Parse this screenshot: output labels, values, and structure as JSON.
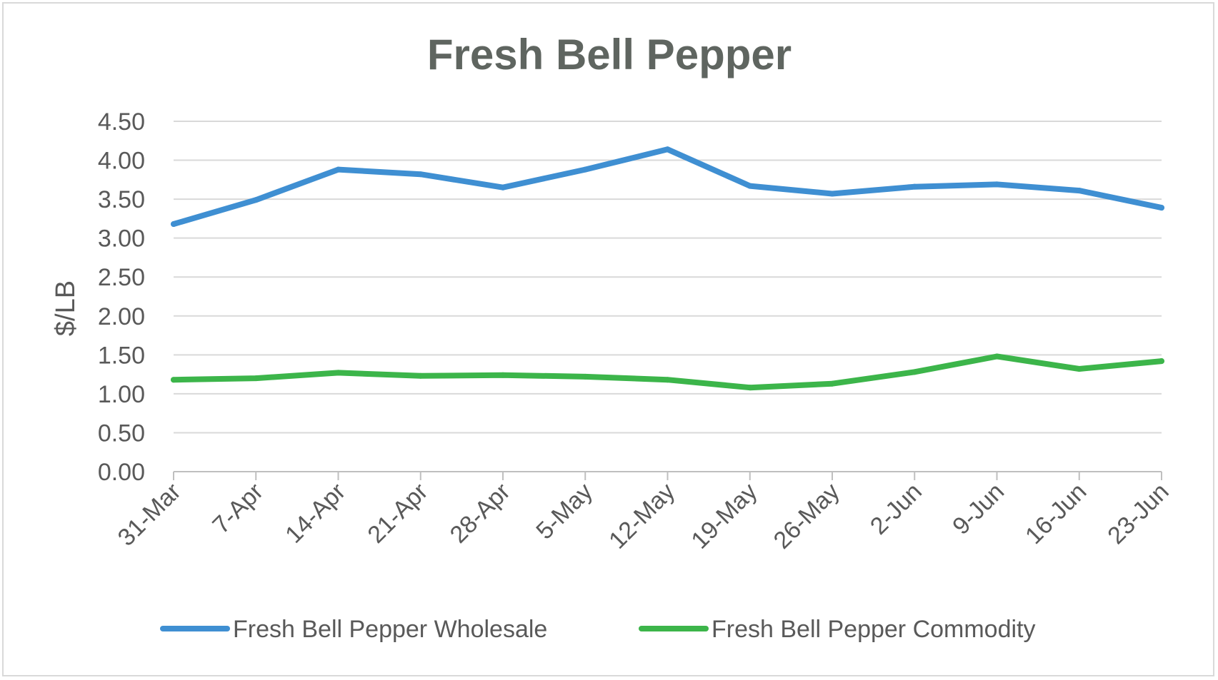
{
  "chart_data": {
    "type": "line",
    "title": "Fresh Bell Pepper",
    "xlabel": "",
    "ylabel": "$/LB",
    "ylim": [
      0,
      4.5
    ],
    "y_ticks": [
      "0.00",
      "0.50",
      "1.00",
      "1.50",
      "2.00",
      "2.50",
      "3.00",
      "3.50",
      "4.00",
      "4.50"
    ],
    "categories": [
      "31-Mar",
      "7-Apr",
      "14-Apr",
      "21-Apr",
      "28-Apr",
      "5-May",
      "12-May",
      "19-May",
      "26-May",
      "2-Jun",
      "9-Jun",
      "16-Jun",
      "23-Jun"
    ],
    "grid": true,
    "legend_position": "bottom",
    "series": [
      {
        "name": "Fresh Bell Pepper Wholesale",
        "color": "#3f8fd2",
        "values": [
          3.18,
          3.49,
          3.88,
          3.82,
          3.65,
          3.88,
          4.14,
          3.67,
          3.57,
          3.66,
          3.69,
          3.61,
          3.39
        ]
      },
      {
        "name": "Fresh Bell Pepper Commodity",
        "color": "#3cb54a",
        "values": [
          1.18,
          1.2,
          1.27,
          1.23,
          1.24,
          1.22,
          1.18,
          1.08,
          1.13,
          1.28,
          1.48,
          1.32,
          1.42
        ]
      }
    ]
  }
}
